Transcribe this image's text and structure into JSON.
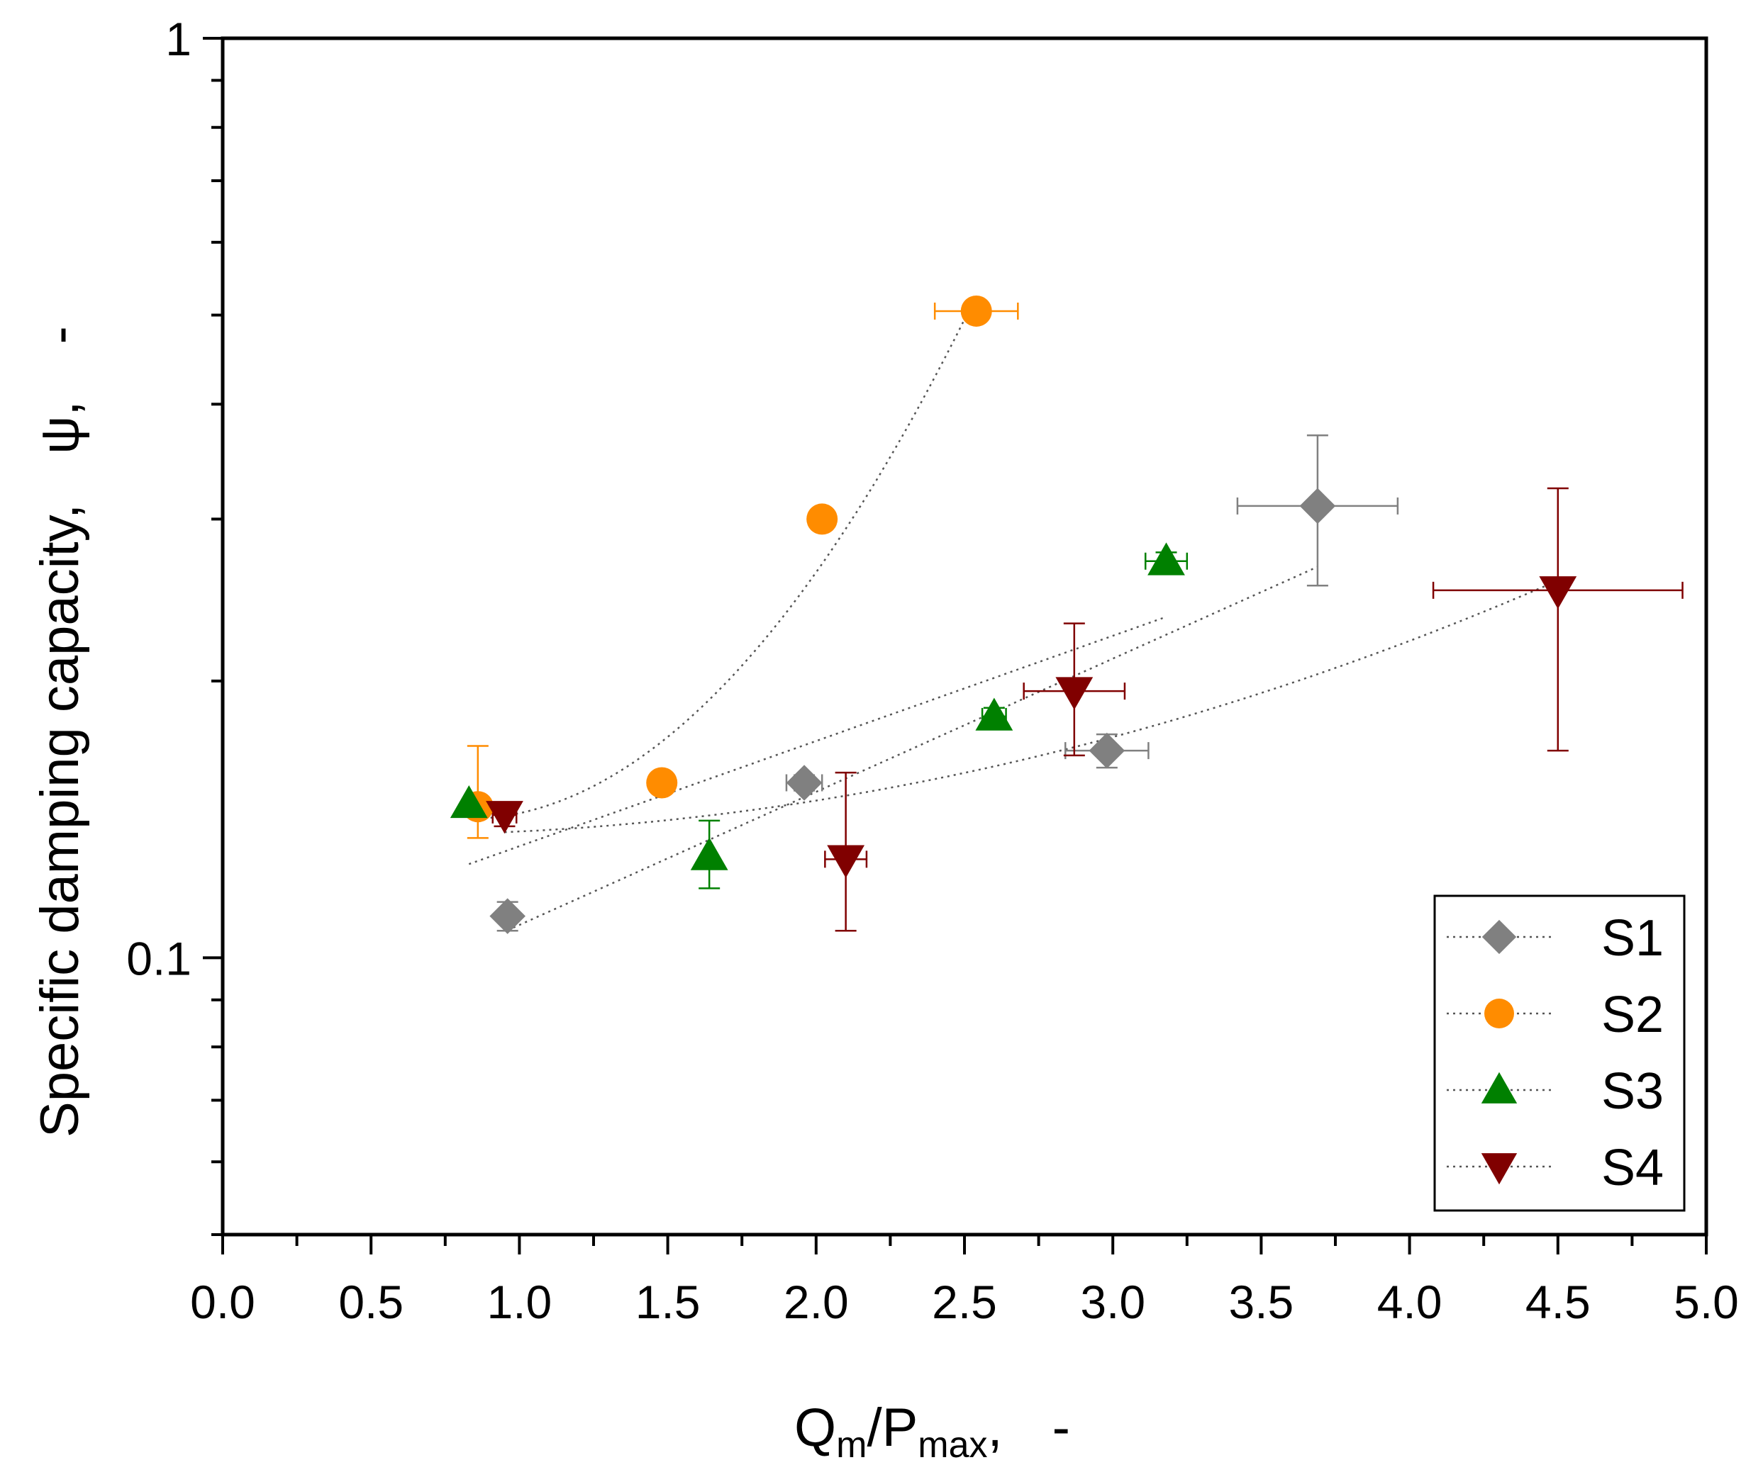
{
  "chart_data": {
    "type": "scatter",
    "xlabel": {
      "main": "Q",
      "sub1": "m",
      "mid": "/P",
      "sub2": "max",
      "tail": ",",
      "dash": "-"
    },
    "ylabel": {
      "main": "Specific damping capacity,",
      "symbol": "ψ,",
      "dash": "-"
    },
    "xlim": [
      0,
      5
    ],
    "ylim": [
      0.05,
      1
    ],
    "yscale": "log",
    "xticks": [
      "0.0",
      "0.5",
      "1.0",
      "1.5",
      "2.0",
      "2.5",
      "3.0",
      "3.5",
      "4.0",
      "4.5",
      "5.0"
    ],
    "yticks": [
      "0.1",
      "1"
    ],
    "legend_position": "bottom-right",
    "series": [
      {
        "name": "S1",
        "marker": "diamond",
        "color": "#808080",
        "x": [
          0.96,
          1.96,
          2.98,
          3.69
        ],
        "y": [
          0.111,
          0.155,
          0.168,
          0.31
        ],
        "xerr": [
          0.02,
          0.06,
          0.14,
          0.27
        ],
        "y_lower": [
          0.107,
          0.152,
          0.161,
          0.254
        ],
        "y_upper": [
          0.115,
          0.158,
          0.175,
          0.37
        ],
        "fit": "exp"
      },
      {
        "name": "S2",
        "marker": "circle",
        "color": "#ff8c00",
        "x": [
          0.86,
          1.48,
          2.02,
          2.54
        ],
        "y": [
          0.146,
          0.155,
          0.3,
          0.505
        ],
        "xerr": [
          0.0,
          0.02,
          0.02,
          0.14
        ],
        "y_lower": [
          0.135,
          0.151,
          0.292,
          0.495
        ],
        "y_upper": [
          0.17,
          0.159,
          0.308,
          0.515
        ],
        "fit": "quad"
      },
      {
        "name": "S3",
        "marker": "triangle-up",
        "color": "#008000",
        "x": [
          0.83,
          1.64,
          2.6,
          3.18
        ],
        "y": [
          0.147,
          0.129,
          0.183,
          0.27
        ],
        "xerr": [
          0.0,
          0.0,
          0.04,
          0.07
        ],
        "y_lower": [
          0.147,
          0.119,
          0.179,
          0.264
        ],
        "y_upper": [
          0.147,
          0.141,
          0.187,
          0.276
        ],
        "fit": "exp"
      },
      {
        "name": "S4",
        "marker": "triangle-down",
        "color": "#800000",
        "x": [
          0.95,
          2.1,
          2.87,
          4.5
        ],
        "y": [
          0.143,
          0.128,
          0.195,
          0.251
        ],
        "xerr": [
          0.04,
          0.07,
          0.17,
          0.42
        ],
        "y_lower": [
          0.139,
          0.107,
          0.166,
          0.168
        ],
        "y_upper": [
          0.147,
          0.159,
          0.231,
          0.324
        ],
        "fit": "quad"
      }
    ]
  }
}
